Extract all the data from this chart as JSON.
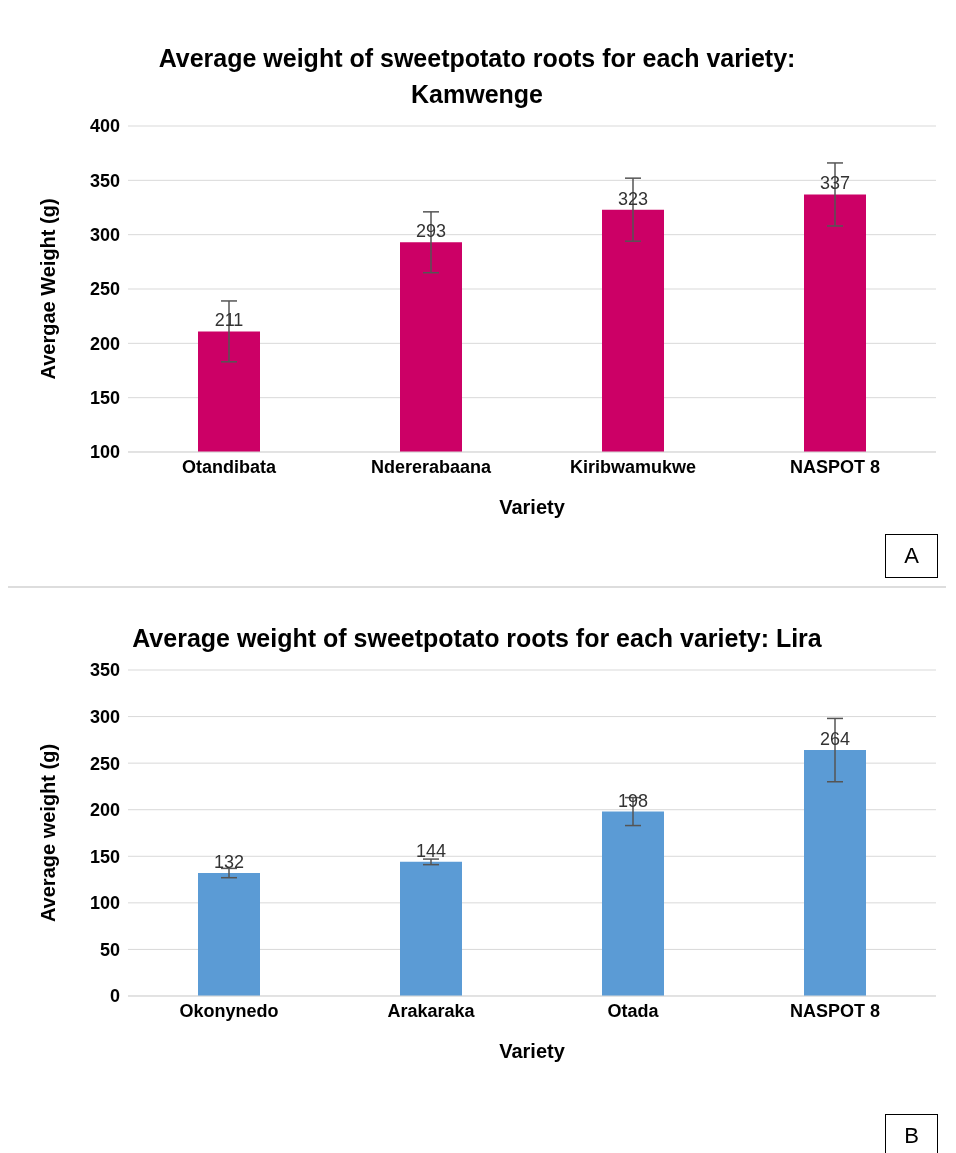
{
  "chart_data": [
    {
      "type": "bar",
      "title": "Average weight of sweetpotato roots for each variety: Kamwenge",
      "xlabel": "Variety",
      "ylabel": "Avergae Weight (g)",
      "categories": [
        "Otandibata",
        "Ndererabaana",
        "Kiribwamukwe",
        "NASPOT 8"
      ],
      "values": [
        211,
        293,
        323,
        337
      ],
      "errors": [
        28,
        28,
        29,
        29
      ],
      "color": "#cc0066",
      "ylim": [
        100,
        400
      ],
      "yticks": [
        100,
        150,
        200,
        250,
        300,
        350,
        400
      ],
      "grid": "y",
      "data_labels": true,
      "annotations": [
        "A"
      ]
    },
    {
      "type": "bar",
      "title": "Average weight of sweetpotato roots for each variety: Lira",
      "xlabel": "Variety",
      "ylabel": "Average weight (g)",
      "categories": [
        "Okonynedo",
        "Arakaraka",
        "Otada",
        "NASPOT 8"
      ],
      "values": [
        132,
        144,
        198,
        264
      ],
      "errors": [
        5,
        3,
        15,
        34
      ],
      "color": "#5b9bd5",
      "ylim": [
        0,
        350
      ],
      "yticks": [
        0,
        50,
        100,
        150,
        200,
        250,
        300,
        350
      ],
      "grid": "y",
      "data_labels": true,
      "annotations": [
        "B"
      ]
    }
  ]
}
